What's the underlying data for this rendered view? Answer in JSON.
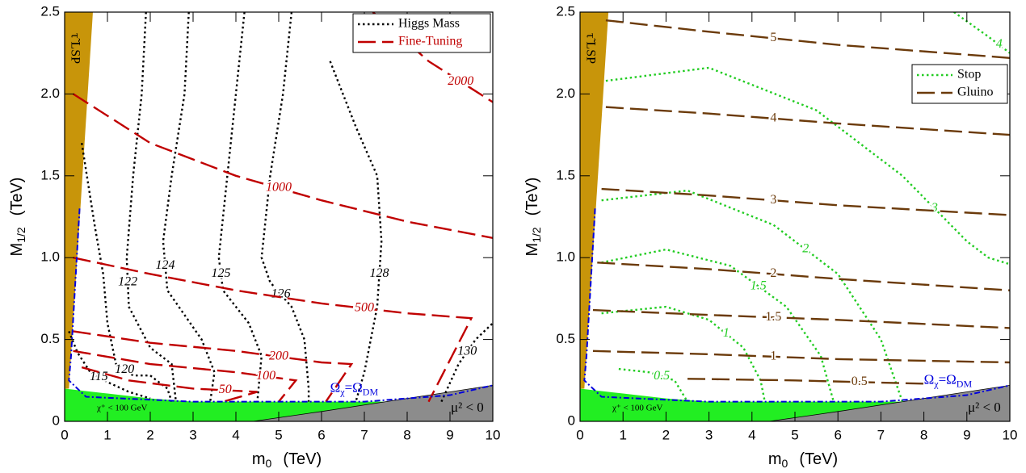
{
  "chart_data": [
    {
      "type": "contour",
      "xlabel": {
        "main": "m",
        "sub": "0",
        "unit": "(TeV)"
      },
      "ylabel": {
        "main": "M",
        "sub": "1/2",
        "unit": "(TeV)"
      },
      "xlim": [
        0,
        10
      ],
      "ylim": [
        0,
        2.5
      ],
      "xticks": [
        0,
        1,
        2,
        3,
        4,
        5,
        6,
        7,
        8,
        9,
        10
      ],
      "yticks": [
        0,
        0.5,
        {
          "value": 1,
          "label": "1.0"
        },
        1.5,
        {
          "value": 2,
          "label": "2.0"
        },
        2.5
      ],
      "legend": "upper right",
      "series": [
        {
          "name": "Higgs Mass",
          "color": "#000000",
          "style": "dotted",
          "contours": [
            {
              "level": 115,
              "x": [
                0.1,
                0.3,
                0.6,
                1.0,
                1.5,
                2.0
              ],
              "y": [
                0.55,
                0.42,
                0.3,
                0.24,
                0.18,
                0.14
              ]
            },
            {
              "level": 120,
              "x": [
                0.4,
                0.7,
                0.9,
                1.0,
                1.2,
                1.6,
                2.0,
                2.4,
                2.5
              ],
              "y": [
                1.7,
                1.2,
                0.9,
                0.6,
                0.35,
                0.28,
                0.28,
                0.2,
                0.12
              ]
            },
            {
              "level": 122,
              "x": [
                1.9,
                1.8,
                1.6,
                1.45,
                1.5,
                2.0,
                2.5,
                2.6
              ],
              "y": [
                2.5,
                2.0,
                1.5,
                1.0,
                0.7,
                0.45,
                0.35,
                0.12
              ]
            },
            {
              "level": 124,
              "x": [
                2.9,
                2.8,
                2.5,
                2.3,
                2.4,
                3.2,
                3.5,
                3.4
              ],
              "y": [
                2.5,
                2.0,
                1.5,
                1.1,
                0.8,
                0.5,
                0.3,
                0.12
              ]
            },
            {
              "level": 125,
              "x": [
                4.2,
                4.0,
                3.8,
                3.6,
                3.7,
                4.3,
                4.6,
                4.5
              ],
              "y": [
                2.5,
                2.0,
                1.5,
                1.0,
                0.8,
                0.6,
                0.4,
                0.12
              ]
            },
            {
              "level": 126,
              "x": [
                5.3,
                5.1,
                4.8,
                4.6,
                4.8,
                5.3,
                5.6,
                5.7,
                5.7
              ],
              "y": [
                2.5,
                2.0,
                1.5,
                1.0,
                0.85,
                0.7,
                0.5,
                0.2,
                0.12
              ]
            },
            {
              "level": 128,
              "x": [
                6.2,
                6.8,
                7.3,
                7.4,
                7.3,
                7.0,
                6.8
              ],
              "y": [
                2.2,
                1.8,
                1.5,
                1.1,
                0.7,
                0.3,
                0.12
              ]
            },
            {
              "level": 130,
              "x": [
                8.8,
                9.2,
                9.6,
                10
              ],
              "y": [
                0.12,
                0.35,
                0.5,
                0.6
              ]
            }
          ]
        },
        {
          "name": "Fine-Tuning",
          "color": "#c00000",
          "style": "dashed",
          "contours": [
            {
              "level": 50,
              "x": [
                0.4,
                1.5,
                3.0,
                4.5,
                3.7
              ],
              "y": [
                0.33,
                0.25,
                0.2,
                0.18,
                0.12
              ]
            },
            {
              "level": 100,
              "x": [
                0.2,
                2.0,
                4.0,
                5.4,
                5.0
              ],
              "y": [
                0.43,
                0.35,
                0.3,
                0.25,
                0.12
              ]
            },
            {
              "level": 200,
              "x": [
                0.2,
                2.0,
                4.0,
                6.0,
                6.7,
                6.1
              ],
              "y": [
                0.55,
                0.48,
                0.43,
                0.36,
                0.35,
                0.12
              ]
            },
            {
              "level": 500,
              "x": [
                0.2,
                2.0,
                4.0,
                6.0,
                8.0,
                9.5,
                8.5
              ],
              "y": [
                1.0,
                0.9,
                0.8,
                0.72,
                0.66,
                0.63,
                0.12
              ]
            },
            {
              "level": 1000,
              "x": [
                0.2,
                2.0,
                4.0,
                6.0,
                8.0,
                10
              ],
              "y": [
                2.0,
                1.7,
                1.5,
                1.35,
                1.22,
                1.12
              ]
            },
            {
              "level": 2000,
              "x": [
                7.2,
                8.5,
                10
              ],
              "y": [
                2.5,
                2.2,
                1.95
              ]
            }
          ]
        }
      ],
      "regions": {
        "chargino": {
          "color": "#22ee22",
          "x": [
            0,
            1,
            2,
            3,
            5,
            10,
            10,
            0
          ],
          "y": [
            0.2,
            0.17,
            0.14,
            0.12,
            0.12,
            0.12,
            0,
            0
          ]
        },
        "tachyonic": {
          "color": "#8c8c8c",
          "x": [
            4.4,
            6,
            8,
            10,
            10
          ],
          "y": [
            0,
            0.06,
            0.14,
            0.22,
            0
          ]
        },
        "stau": {
          "color": "#c8950a",
          "x": [
            0,
            0.1,
            0.66,
            0
          ],
          "y": [
            0.2,
            0.2,
            2.5,
            2.5
          ]
        }
      },
      "relic": {
        "color": "#0000dd",
        "x": [
          0.35,
          0.15,
          0.1,
          0.5,
          3,
          7,
          9,
          10
        ],
        "y": [
          1.3,
          0.4,
          0.25,
          0.15,
          0.12,
          0.12,
          0.16,
          0.22
        ]
      },
      "annotations": {
        "stau": "τ̃ LSP",
        "chargino": "χ⁺ < 100 GeV",
        "mu": "μ² < 0",
        "omega": [
          "Ω",
          "χ",
          "=Ω",
          "DM"
        ]
      }
    },
    {
      "type": "contour",
      "xlabel": {
        "main": "m",
        "sub": "0",
        "unit": "(TeV)"
      },
      "ylabel": {
        "main": "M",
        "sub": "1/2",
        "unit": "(TeV)"
      },
      "xlim": [
        0,
        10
      ],
      "ylim": [
        0,
        2.5
      ],
      "xticks": [
        0,
        1,
        2,
        3,
        4,
        5,
        6,
        7,
        8,
        9,
        10
      ],
      "yticks": [
        0,
        0.5,
        {
          "value": 1,
          "label": "1.0"
        },
        1.5,
        {
          "value": 2,
          "label": "2.0"
        },
        2.5
      ],
      "legend": "upper right",
      "series": [
        {
          "name": "Stop",
          "color": "#22cc22",
          "style": "dotted",
          "contours": [
            {
              "level": 0.5,
              "x": [
                0.9,
                1.6,
                2.2,
                2.5
              ],
              "y": [
                0.32,
                0.3,
                0.25,
                0.12
              ]
            },
            {
              "level": 1,
              "x": [
                0.5,
                2.0,
                3.0,
                3.8,
                4.2,
                4.3
              ],
              "y": [
                0.66,
                0.7,
                0.62,
                0.45,
                0.25,
                0.12
              ]
            },
            {
              "level": 1.5,
              "x": [
                0.5,
                2.0,
                3.5,
                4.8,
                5.6,
                5.9
              ],
              "y": [
                0.97,
                1.05,
                0.95,
                0.7,
                0.4,
                0.12
              ]
            },
            {
              "level": 2,
              "x": [
                0.5,
                2.5,
                4.5,
                6.0,
                7.0,
                7.5
              ],
              "y": [
                1.35,
                1.41,
                1.2,
                0.9,
                0.5,
                0.12
              ]
            },
            {
              "level": 3,
              "x": [
                0.6,
                3.0,
                5.5,
                7.5,
                9.0,
                9.5,
                10
              ],
              "y": [
                2.08,
                2.16,
                1.9,
                1.5,
                1.1,
                1.0,
                0.96
              ]
            },
            {
              "level": 4,
              "x": [
                8.7,
                9.5,
                10
              ],
              "y": [
                2.5,
                2.35,
                2.25
              ]
            }
          ]
        },
        {
          "name": "Gluino",
          "color": "#6b3a0a",
          "style": "dashed",
          "contours": [
            {
              "level": 0.5,
              "x": [
                2.5,
                5.0,
                8.0
              ],
              "y": [
                0.26,
                0.25,
                0.23
              ]
            },
            {
              "level": 1,
              "x": [
                0.3,
                3.0,
                6.0,
                10
              ],
              "y": [
                0.43,
                0.41,
                0.38,
                0.36
              ]
            },
            {
              "level": 1.5,
              "x": [
                0.3,
                3.0,
                6.0,
                10
              ],
              "y": [
                0.68,
                0.65,
                0.62,
                0.57
              ]
            },
            {
              "level": 2,
              "x": [
                0.4,
                3.0,
                6.0,
                10
              ],
              "y": [
                0.97,
                0.93,
                0.87,
                0.8
              ]
            },
            {
              "level": 3,
              "x": [
                0.5,
                3.0,
                6.0,
                10
              ],
              "y": [
                1.42,
                1.38,
                1.32,
                1.26
              ]
            },
            {
              "level": 4,
              "x": [
                0.6,
                3.0,
                6.0,
                10
              ],
              "y": [
                1.92,
                1.88,
                1.82,
                1.75
              ]
            },
            {
              "level": 5,
              "x": [
                0.6,
                3.0,
                6.0,
                10
              ],
              "y": [
                2.45,
                2.38,
                2.3,
                2.22
              ]
            }
          ]
        }
      ],
      "regions": {
        "chargino": {
          "color": "#22ee22",
          "x": [
            0,
            1,
            2,
            3,
            5,
            10,
            10,
            0
          ],
          "y": [
            0.2,
            0.17,
            0.14,
            0.12,
            0.12,
            0.12,
            0,
            0
          ]
        },
        "tachyonic": {
          "color": "#8c8c8c",
          "x": [
            4.4,
            6,
            8,
            10,
            10
          ],
          "y": [
            0,
            0.06,
            0.14,
            0.22,
            0
          ]
        },
        "stau": {
          "color": "#c8950a",
          "x": [
            0,
            0.1,
            0.66,
            0
          ],
          "y": [
            0.2,
            0.2,
            2.5,
            2.5
          ]
        }
      },
      "relic": {
        "color": "#0000dd",
        "x": [
          0.35,
          0.15,
          0.1,
          0.5,
          3,
          7,
          9,
          10
        ],
        "y": [
          1.3,
          0.4,
          0.25,
          0.15,
          0.12,
          0.12,
          0.16,
          0.22
        ]
      },
      "annotations": {
        "stau": "τ̃ LSP",
        "chargino": "χ⁺ < 100 GeV",
        "mu": "μ² < 0",
        "omega": [
          "Ω",
          "χ",
          "=Ω",
          "DM"
        ]
      }
    }
  ]
}
